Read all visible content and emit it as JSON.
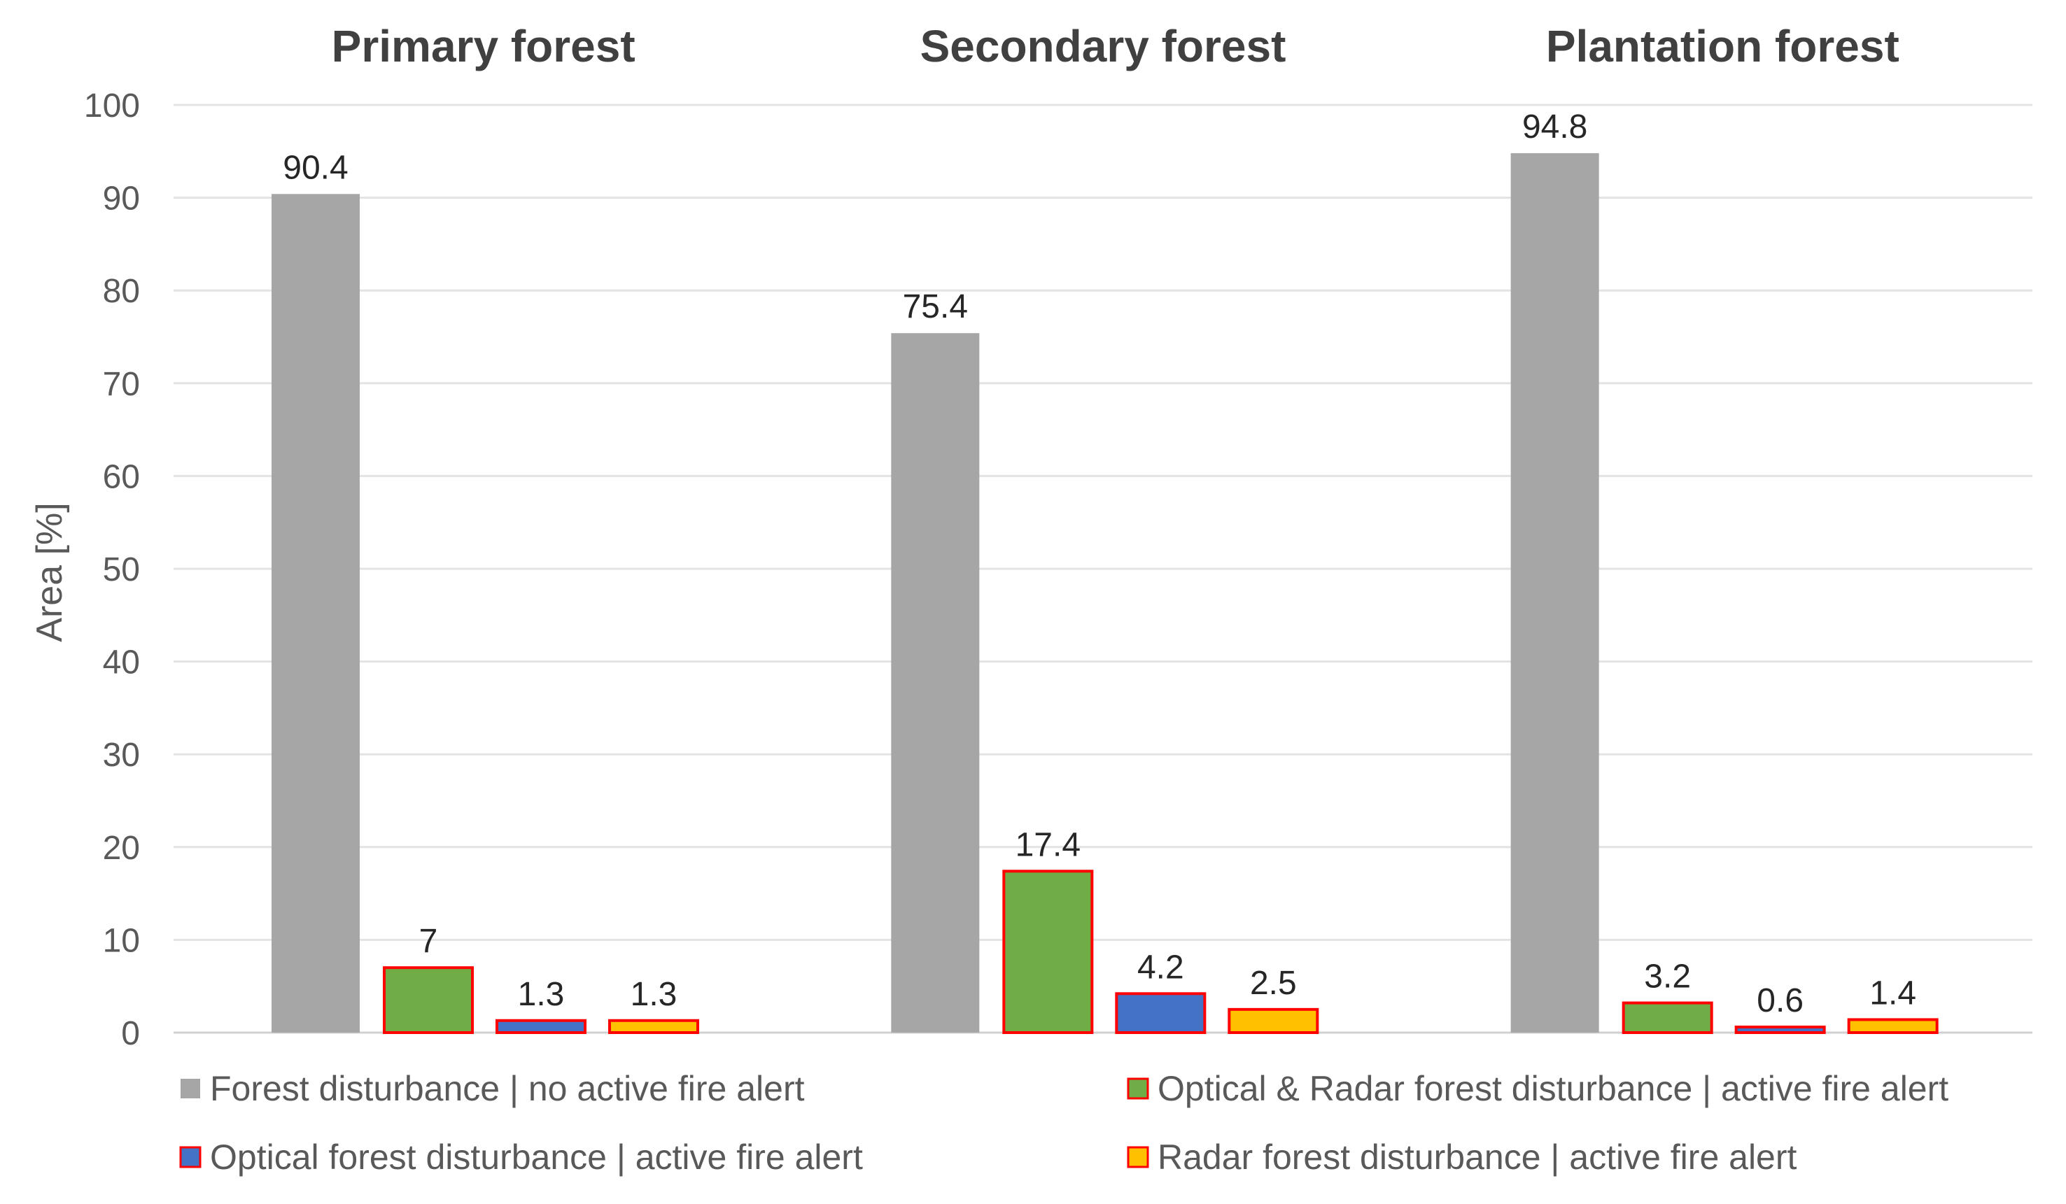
{
  "chart_data": {
    "type": "bar",
    "ylabel": "Area [%]",
    "ylim": [
      0,
      100
    ],
    "yticks": [
      0,
      10,
      20,
      30,
      40,
      50,
      60,
      70,
      80,
      90,
      100
    ],
    "grid": true,
    "legend_position": "bottom",
    "categories": [
      "Primary forest",
      "Secondary forest",
      "Plantation forest"
    ],
    "series": [
      {
        "name": "Forest disturbance | no active fire alert",
        "color": "#a6a6a6",
        "edge": "#a6a6a6",
        "values": [
          90.4,
          75.4,
          94.8
        ],
        "labels": [
          "90.4",
          "75.4",
          "94.8"
        ]
      },
      {
        "name": "Optical & Radar forest disturbance | active fire alert",
        "color": "#70ad47",
        "edge": "#ff0000",
        "values": [
          7,
          17.4,
          3.2
        ],
        "labels": [
          "7",
          "17.4",
          "3.2"
        ]
      },
      {
        "name": "Optical forest disturbance | active fire alert",
        "color": "#4472c4",
        "edge": "#ff0000",
        "values": [
          1.3,
          4.2,
          0.6
        ],
        "labels": [
          "1.3",
          "4.2",
          "0.6"
        ]
      },
      {
        "name": "Radar forest disturbance | active fire alert",
        "color": "#ffc000",
        "edge": "#ff0000",
        "values": [
          1.3,
          2.5,
          1.4
        ],
        "labels": [
          "1.3",
          "2.5",
          "1.4"
        ]
      }
    ]
  }
}
